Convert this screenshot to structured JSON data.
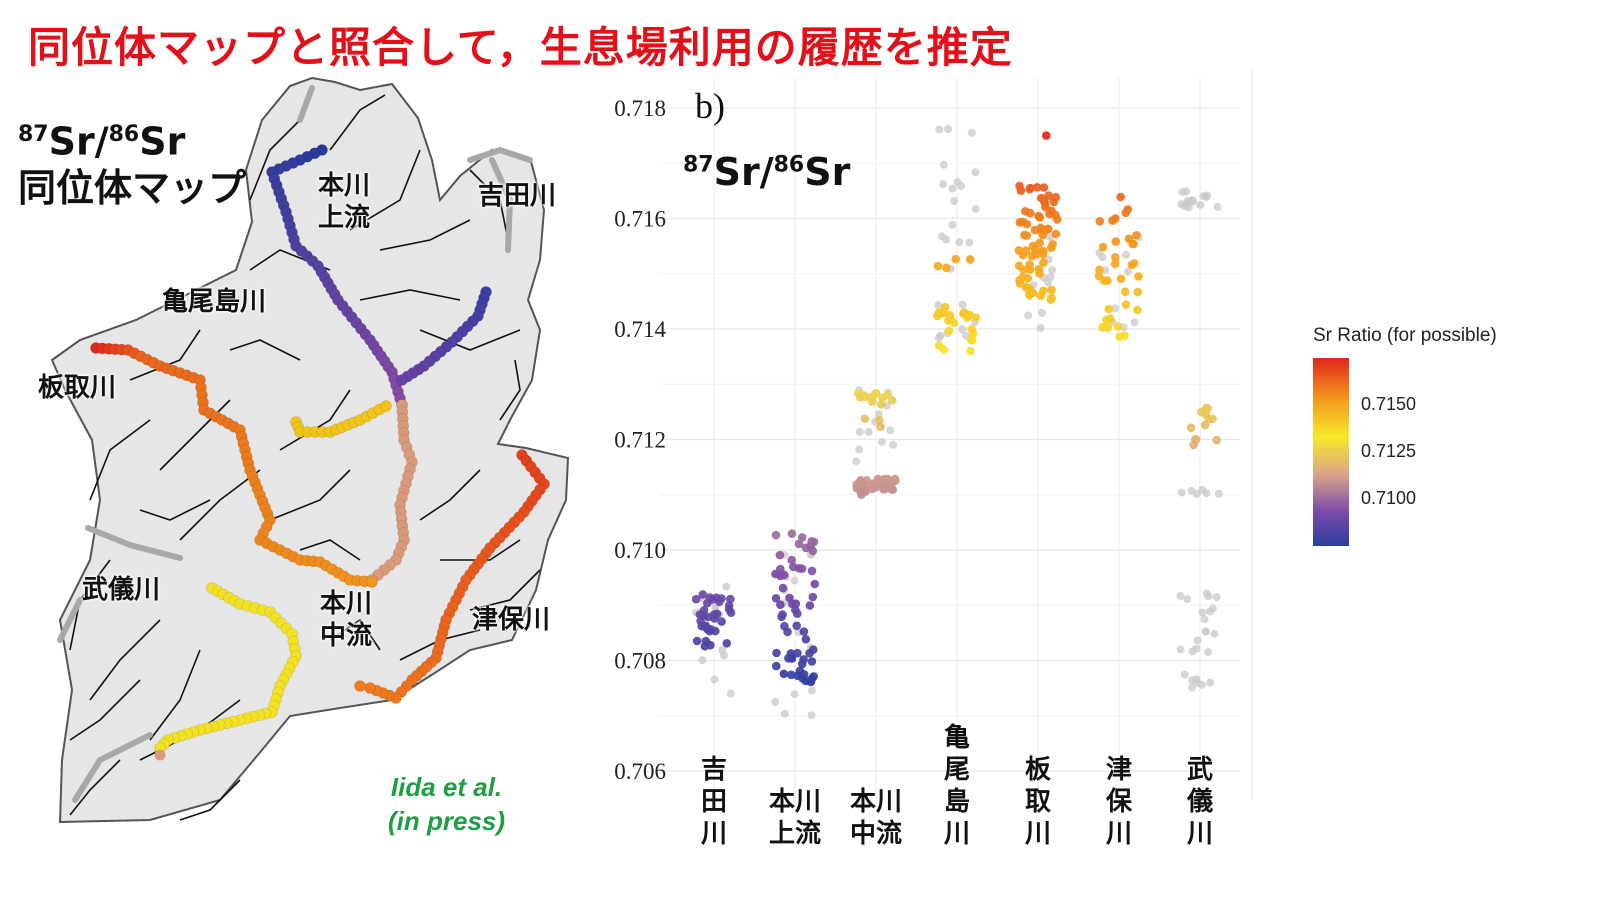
{
  "headline": "同位体マップと照合して，生息場利用の履歴を推定",
  "map": {
    "title_line1_iso1": "87",
    "title_line1_el1": "Sr/",
    "title_line1_iso2": "86",
    "title_line1_el2": "Sr",
    "title_line2": "同位体マップ",
    "labels": {
      "honkawa_upper_1": "本川",
      "honkawa_upper_2": "上流",
      "yoshida": "吉田川",
      "kameoshima": "亀尾島川",
      "itadori": "板取川",
      "mugi": "武儀川",
      "honkawa_mid_1": "本川",
      "honkawa_mid_2": "中流",
      "tsubo": "津保川"
    },
    "citation_line1": "Iida et al.",
    "citation_line2": "(in press)",
    "colors": {
      "honkawa_upper": "#2f3f9e",
      "yoshida": "#4a3aa0",
      "honkawa_mid": "#d99a7a",
      "kameoshima": "#f1c41a",
      "itadori": "#e6731f",
      "tsubo": "#e3521c",
      "mugi": "#f3e224",
      "basin": "#e6e6e6"
    }
  },
  "chart_data": {
    "type": "scatter",
    "panel_label": "b)",
    "title_iso1": "87",
    "title_el1": "Sr/",
    "title_iso2": "86",
    "title_el2": "Sr",
    "ylim": [
      0.706,
      0.718
    ],
    "yticks": [
      "0.706",
      "0.708",
      "0.710",
      "0.712",
      "0.714",
      "0.716",
      "0.718"
    ],
    "ytick_values": [
      0.706,
      0.708,
      0.71,
      0.712,
      0.714,
      0.716,
      0.718
    ],
    "categories": [
      {
        "label": "吉田川",
        "lines": [
          "吉",
          "田",
          "川"
        ]
      },
      {
        "label": "本川上流",
        "lines": [
          "本川",
          "上流"
        ]
      },
      {
        "label": "本川中流",
        "lines": [
          "本川",
          "中流"
        ]
      },
      {
        "label": "亀尾島川",
        "lines": [
          "亀",
          "尾",
          "島",
          "川"
        ]
      },
      {
        "label": "板取川",
        "lines": [
          "板",
          "取",
          "川"
        ]
      },
      {
        "label": "津保川",
        "lines": [
          "津",
          "保",
          "川"
        ]
      },
      {
        "label": "武儀川",
        "lines": [
          "武",
          "儀",
          "川"
        ]
      }
    ],
    "series_groups": [
      {
        "category": 0,
        "colored": [
          [
            0.7082,
            0.7092,
            34
          ]
        ],
        "gray": [
          [
            0.7074,
            0.7095,
            12
          ]
        ]
      },
      {
        "category": 1,
        "colored": [
          [
            0.7076,
            0.7082,
            22
          ],
          [
            0.7083,
            0.7094,
            18
          ],
          [
            0.7095,
            0.7103,
            20
          ]
        ],
        "gray": [
          [
            0.707,
            0.7103,
            14
          ]
        ]
      },
      {
        "category": 2,
        "colored": [
          [
            0.711,
            0.7113,
            40
          ],
          [
            0.7122,
            0.7129,
            14
          ]
        ],
        "gray": [
          [
            0.7116,
            0.7129,
            12
          ]
        ]
      },
      {
        "category": 3,
        "colored": [
          [
            0.7136,
            0.7144,
            22
          ],
          [
            0.7151,
            0.7153,
            4
          ]
        ],
        "gray": [
          [
            0.7136,
            0.7178,
            26
          ]
        ]
      },
      {
        "category": 4,
        "colored": [
          [
            0.7145,
            0.7166,
            70
          ],
          [
            0.7175,
            0.7175,
            1
          ]
        ],
        "gray": [
          [
            0.7135,
            0.716,
            14
          ]
        ]
      },
      {
        "category": 5,
        "colored": [
          [
            0.7137,
            0.7164,
            34
          ]
        ],
        "gray": [
          [
            0.7138,
            0.7158,
            10
          ]
        ]
      },
      {
        "category": 6,
        "colored": [
          [
            0.7119,
            0.7126,
            12
          ]
        ],
        "gray": [
          [
            0.7075,
            0.7093,
            24
          ],
          [
            0.711,
            0.7111,
            6
          ],
          [
            0.7162,
            0.7165,
            14
          ]
        ]
      }
    ],
    "legend": {
      "title": "Sr Ratio (for possible)",
      "ticks": [
        "0.7150",
        "0.7125",
        "0.7100"
      ],
      "tick_values": [
        0.715,
        0.7125,
        0.71
      ],
      "range": [
        0.7075,
        0.7175
      ],
      "colors": [
        "#2a3f9e",
        "#7b4aa8",
        "#d9a38a",
        "#f7e92a",
        "#f39a1e",
        "#e1261c"
      ]
    }
  }
}
